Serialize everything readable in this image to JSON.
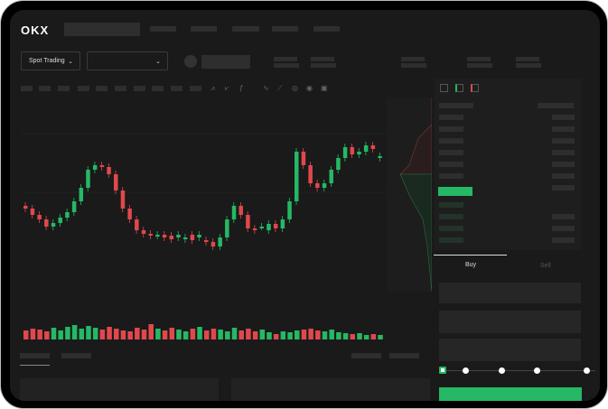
{
  "header": {
    "logo": "OKX"
  },
  "toolbar": {
    "market_select": "Spot Trading",
    "pair_select": ""
  },
  "trade": {
    "tabs": [
      {
        "label": "Buy",
        "active": true
      },
      {
        "label": "Sell",
        "active": false
      }
    ],
    "leverage_slider_value": 0
  },
  "colors": {
    "up": "#25b865",
    "down": "#e0484c",
    "background": "#1a1a1a"
  },
  "chart_data": {
    "type": "candlestick",
    "opens": [
      95,
      92,
      85,
      80,
      72,
      76,
      82,
      88,
      100,
      115,
      135,
      140,
      138,
      130,
      112,
      92,
      80,
      68,
      64,
      62,
      63,
      62,
      60,
      58,
      63,
      60,
      57,
      55,
      50,
      60,
      80,
      95,
      85,
      70,
      72,
      68,
      75,
      70,
      80,
      100,
      155,
      140,
      120,
      115,
      120,
      135,
      148,
      160,
      152,
      155,
      162,
      148
    ],
    "closes": [
      92,
      85,
      80,
      72,
      76,
      82,
      88,
      100,
      115,
      135,
      140,
      138,
      130,
      112,
      92,
      80,
      68,
      64,
      62,
      63,
      60,
      58,
      63,
      60,
      57,
      63,
      55,
      50,
      60,
      80,
      95,
      85,
      70,
      68,
      72,
      75,
      70,
      80,
      100,
      155,
      140,
      120,
      115,
      120,
      135,
      148,
      160,
      152,
      155,
      162,
      158,
      150
    ],
    "volumes": [
      10,
      12,
      11,
      9,
      13,
      10,
      14,
      16,
      12,
      15,
      13,
      11,
      14,
      12,
      10,
      9,
      13,
      11,
      17,
      12,
      10,
      13,
      11,
      9,
      12,
      14,
      10,
      12,
      11,
      9,
      13,
      10,
      12,
      9,
      11,
      8,
      6,
      9,
      8,
      10,
      11,
      12,
      10,
      9,
      11,
      8,
      7,
      6,
      7,
      5,
      6,
      5
    ],
    "depth": {
      "asks": true,
      "bids": true
    }
  }
}
